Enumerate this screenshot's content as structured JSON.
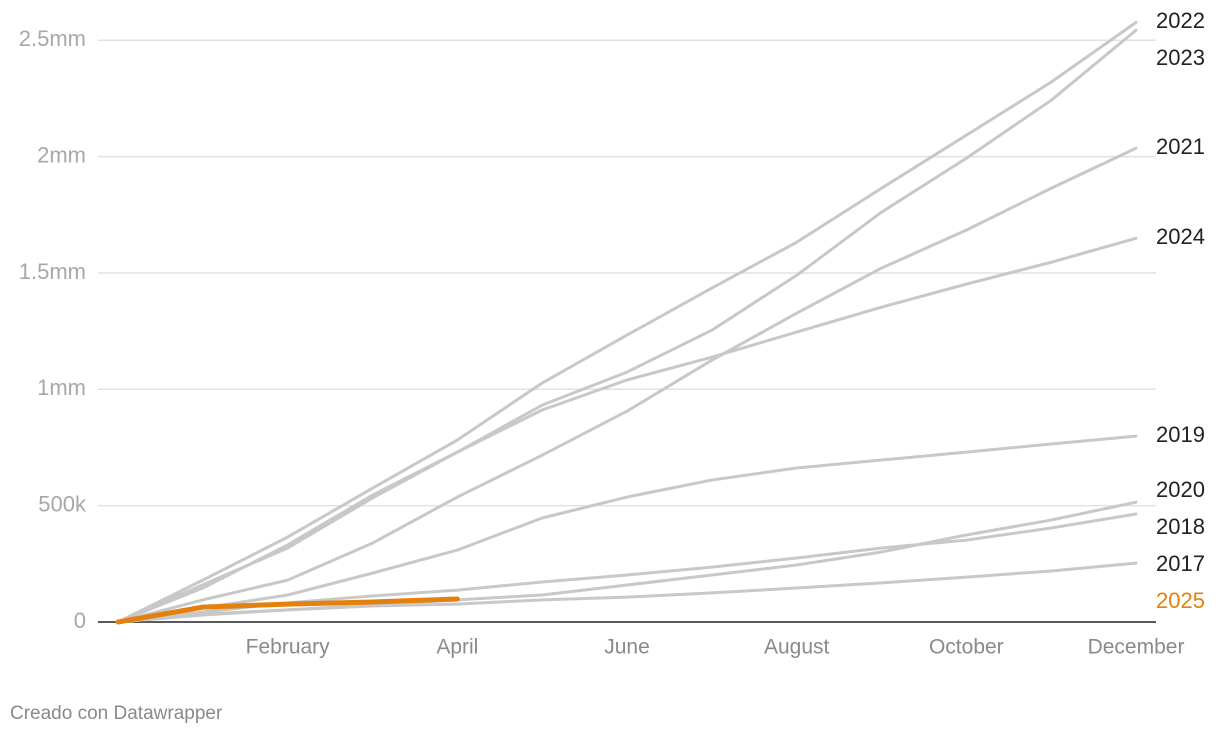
{
  "chart_data": {
    "type": "line",
    "categories": [
      null,
      null,
      "February",
      null,
      "April",
      null,
      "June",
      null,
      "August",
      null,
      "October",
      null,
      "December"
    ],
    "ylim": [
      0,
      2600000
    ],
    "yticks": [
      0,
      {
        "value": 500000,
        "label": "500k"
      },
      {
        "value": 1000000,
        "label": "1mm"
      },
      {
        "value": 1500000,
        "label": "1.5mm"
      },
      {
        "value": 2000000,
        "label": "2mm"
      },
      {
        "value": 2500000,
        "label": "2.5mm"
      }
    ],
    "grid": true,
    "series": [
      {
        "name": "2022",
        "color": "#c8c8c8",
        "label_color": "#222222",
        "values": [
          0,
          180000,
          365000,
          575000,
          782000,
          1027000,
          1233000,
          1435000,
          1632000,
          1864000,
          2092000,
          2320000,
          2577000
        ]
      },
      {
        "name": "2023",
        "color": "#c8c8c8",
        "label_color": "#222222",
        "values": [
          0,
          160000,
          318000,
          533000,
          730000,
          932000,
          1074000,
          1254000,
          1490000,
          1761000,
          1993000,
          2242000,
          2543000
        ]
      },
      {
        "name": "2021",
        "color": "#c8c8c8",
        "label_color": "#222222",
        "values": [
          0,
          95000,
          180000,
          339000,
          537000,
          717000,
          906000,
          1125000,
          1327000,
          1521000,
          1684000,
          1864000,
          2036000
        ]
      },
      {
        "name": "2024",
        "color": "#c8c8c8",
        "label_color": "#222222",
        "values": [
          0,
          146000,
          331000,
          545000,
          730000,
          911000,
          1040000,
          1138000,
          1246000,
          1353000,
          1452000,
          1546000,
          1649000
        ]
      },
      {
        "name": "2019",
        "color": "#c8c8c8",
        "label_color": "#222222",
        "values": [
          0,
          60000,
          116000,
          210000,
          309000,
          447000,
          537000,
          610000,
          662000,
          696000,
          730000,
          765000,
          799000
        ]
      },
      {
        "name": "2020",
        "color": "#c8c8c8",
        "label_color": "#222222",
        "values": [
          0,
          30000,
          52000,
          73000,
          95000,
          116000,
          159000,
          202000,
          245000,
          301000,
          374000,
          438000,
          515000
        ]
      },
      {
        "name": "2018",
        "color": "#c8c8c8",
        "label_color": "#222222",
        "values": [
          0,
          43000,
          82000,
          112000,
          137000,
          172000,
          202000,
          236000,
          275000,
          318000,
          352000,
          404000,
          464000
        ]
      },
      {
        "name": "2017",
        "color": "#c8c8c8",
        "label_color": "#222222",
        "values": [
          0,
          34000,
          52000,
          69000,
          77000,
          95000,
          107000,
          125000,
          146000,
          168000,
          193000,
          219000,
          253000
        ]
      },
      {
        "name": "2025",
        "color": "#e3800e",
        "label_color": "#e3800e",
        "values": [
          0,
          64000,
          77000,
          86000,
          99000,
          null,
          null,
          null,
          null,
          null,
          null,
          null,
          null
        ]
      }
    ]
  },
  "credit": "Creado con Datawrapper"
}
